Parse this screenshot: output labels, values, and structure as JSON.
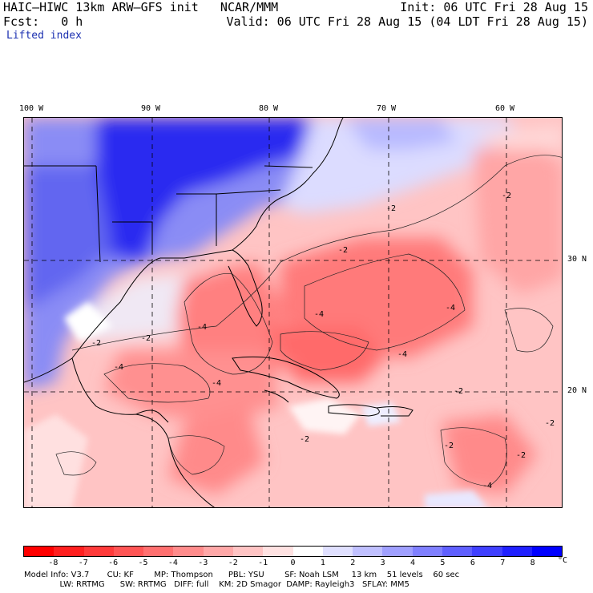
{
  "header": {
    "title": "HAIC–HIWC 13km ARW–GFS init   NCAR/MMM",
    "init": "Init: 06 UTC Fri 28 Aug 15",
    "fcst": "Fcst:   0 h",
    "valid": "Valid: 06 UTC Fri 28 Aug 15 (04 LDT Fri 28 Aug 15)",
    "field": "Lifted index"
  },
  "map": {
    "lon_labels": [
      "100 W",
      "90 W",
      "80 W",
      "70 W",
      "60 W"
    ],
    "lat_labels": [
      "30 N",
      "20 N"
    ],
    "contour_labels": [
      "-2",
      "-4"
    ],
    "colors": {
      "negative": "#ff2020",
      "positive": "#1010ff",
      "zero": "#ffffff"
    }
  },
  "colorbar": {
    "ticks": [
      "-8",
      "-7",
      "-6",
      "-5",
      "-4",
      "-3",
      "-2",
      "-1",
      "0",
      "1",
      "2",
      "3",
      "4",
      "5",
      "6",
      "7",
      "8"
    ],
    "unit": "°C",
    "colors": [
      "#ff0000",
      "#ff1f1f",
      "#ff3a3a",
      "#ff5555",
      "#ff7070",
      "#ff8c8c",
      "#ffa8a8",
      "#ffc4c4",
      "#ffe2e2",
      "#ffffff",
      "#e0e0ff",
      "#c0c0ff",
      "#a0a0ff",
      "#8080ff",
      "#6060ff",
      "#4040ff",
      "#2020ff",
      "#0000ff"
    ]
  },
  "model_info": {
    "line1": "Model Info: V3.7       CU: KF        MP: Thompson      PBL: YSU        SF: Noah LSM     13 km    51 levels    60 sec",
    "line2": "              LW: RRTMG      SW: RRTMG   DIFF: full    KM: 2D Smagor  DAMP: Rayleigh3   SFLAY: MM5"
  }
}
